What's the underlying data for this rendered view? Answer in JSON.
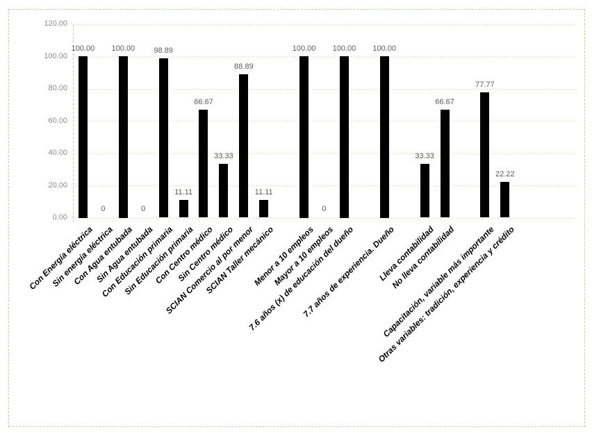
{
  "chart_data": {
    "type": "bar",
    "title": "",
    "xlabel": "",
    "ylabel": "",
    "ylim": [
      0,
      120
    ],
    "y_tick_step": 20,
    "y_tick_labels": [
      "0.00",
      "20.00",
      "40.00",
      "60.00",
      "80.00",
      "100.00",
      "120.00"
    ],
    "grid": "horizontal-dotted",
    "legend": "none",
    "slot_count": 25,
    "categories": [
      {
        "label": "Con Energía eléctrica",
        "value": 100,
        "value_label": "100.00",
        "slot": 0
      },
      {
        "label": "Sin energía eléctrica",
        "value": 0,
        "value_label": "0",
        "slot": 1
      },
      {
        "label": "Con Agua entubada",
        "value": 100,
        "value_label": "100.00",
        "slot": 2
      },
      {
        "label": "Sin Agua entubada",
        "value": 0,
        "value_label": "0",
        "slot": 3
      },
      {
        "label": "Con Educación primaria",
        "value": 98.89,
        "value_label": "98.89",
        "slot": 4
      },
      {
        "label": "Sin Educación primaria",
        "value": 11.11,
        "value_label": "11.11",
        "slot": 5
      },
      {
        "label": "Con Centro médico",
        "value": 66.67,
        "value_label": "66.67",
        "slot": 6
      },
      {
        "label": "Sin Centro médico",
        "value": 33.33,
        "value_label": "33.33",
        "slot": 7
      },
      {
        "label": "SCIAN Comercio al por menor",
        "value": 88.89,
        "value_label": "88.89",
        "slot": 8
      },
      {
        "label": "SCIAN Taller mecánico",
        "value": 11.11,
        "value_label": "11.11",
        "slot": 9
      },
      {
        "label": "Menor a 10 empleos",
        "value": 100,
        "value_label": "100.00",
        "slot": 11
      },
      {
        "label": "Mayor a 10 empleos",
        "value": 0,
        "value_label": "0",
        "slot": 12
      },
      {
        "label": "7.6  años (x) de educación del dueño",
        "value": 100,
        "value_label": "100.00",
        "slot": 13
      },
      {
        "label": "7.7 años de experiencia. Dueño",
        "value": 100,
        "value_label": "100.00",
        "slot": 15
      },
      {
        "label": "Lleva contabilidad",
        "value": 33.33,
        "value_label": "33.33",
        "slot": 17
      },
      {
        "label": "No lleva contabilidad",
        "value": 66.67,
        "value_label": "66.67",
        "slot": 18
      },
      {
        "label": "Capacitación, variable más importante",
        "value": 77.77,
        "value_label": "77.77",
        "slot": 20
      },
      {
        "label": "Otras variables: tradición, experiencia y crédito",
        "value": 22.22,
        "value_label": "22.22",
        "slot": 21
      }
    ],
    "colors": {
      "bar": "#000000",
      "gridline": "#f2c285",
      "axis_line": "#b9d7a6",
      "frame_border": "#b9d7a6",
      "y_tick_text": "#8c8c8c",
      "value_label_text": "#595959",
      "category_label_text": "#000000",
      "background": "#ffffff"
    }
  }
}
